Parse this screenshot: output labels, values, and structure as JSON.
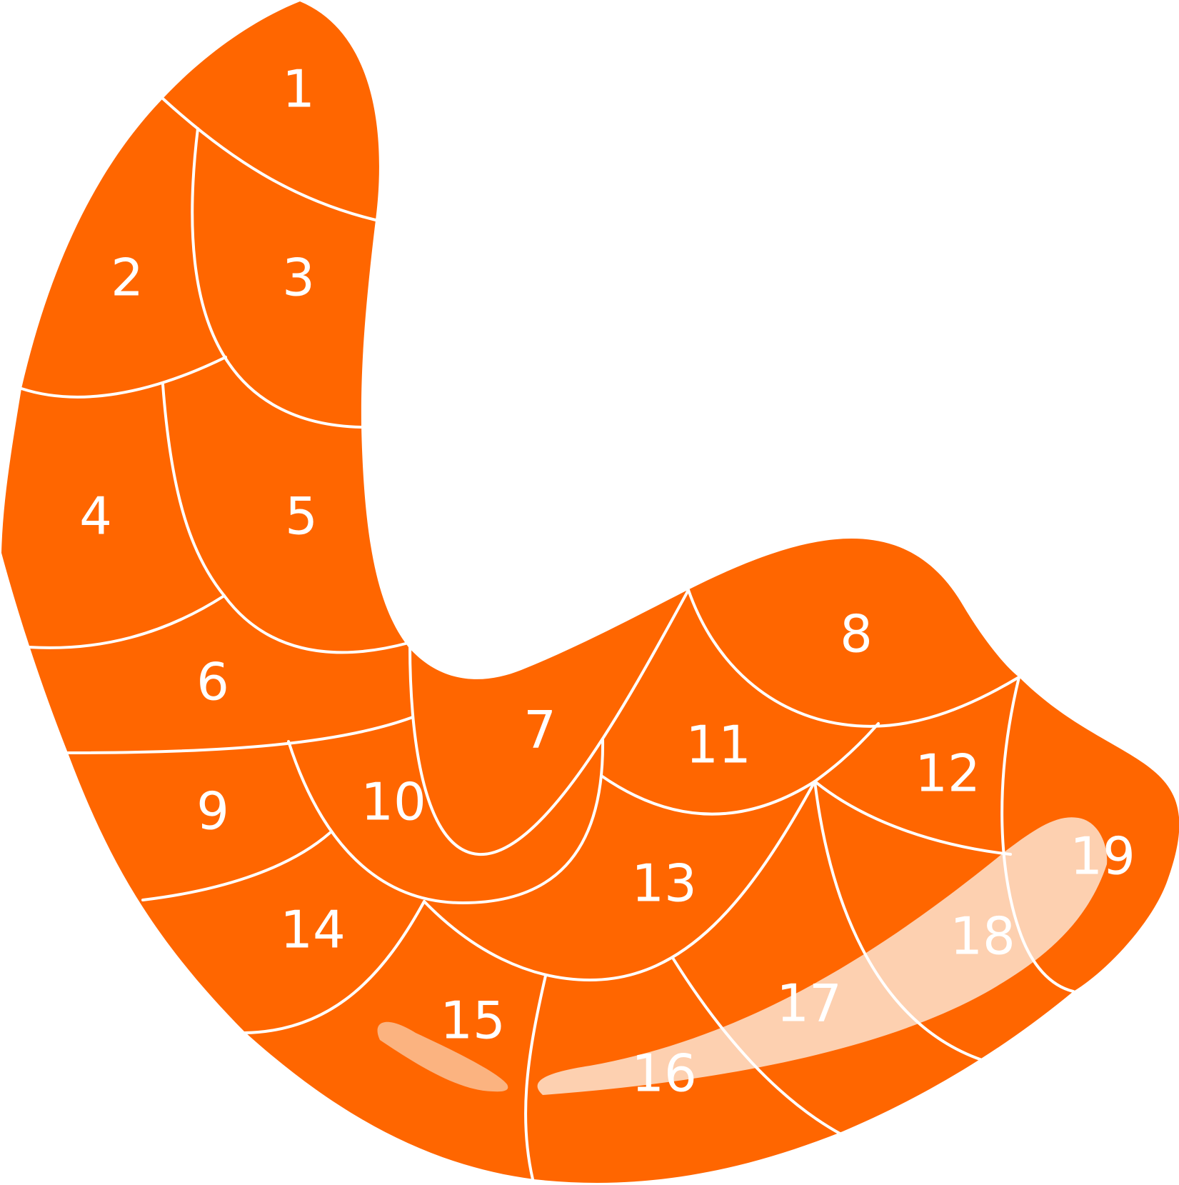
{
  "colors": {
    "body": "#ff6600",
    "background": "#ffffff",
    "lines": "#ffffff",
    "highlight_band": "#fdd0b0",
    "highlight_small": "#fbb380"
  },
  "regions": [
    {
      "id": "1",
      "label": "1"
    },
    {
      "id": "2",
      "label": "2"
    },
    {
      "id": "3",
      "label": "3"
    },
    {
      "id": "4",
      "label": "4"
    },
    {
      "id": "5",
      "label": "5"
    },
    {
      "id": "6",
      "label": "6"
    },
    {
      "id": "7",
      "label": "7"
    },
    {
      "id": "8",
      "label": "8"
    },
    {
      "id": "9",
      "label": "9"
    },
    {
      "id": "10",
      "label": "10"
    },
    {
      "id": "11",
      "label": "11"
    },
    {
      "id": "12",
      "label": "12"
    },
    {
      "id": "13",
      "label": "13"
    },
    {
      "id": "14",
      "label": "14"
    },
    {
      "id": "15",
      "label": "15"
    },
    {
      "id": "16",
      "label": "16"
    },
    {
      "id": "17",
      "label": "17"
    },
    {
      "id": "18",
      "label": "18"
    },
    {
      "id": "19",
      "label": "19"
    }
  ]
}
